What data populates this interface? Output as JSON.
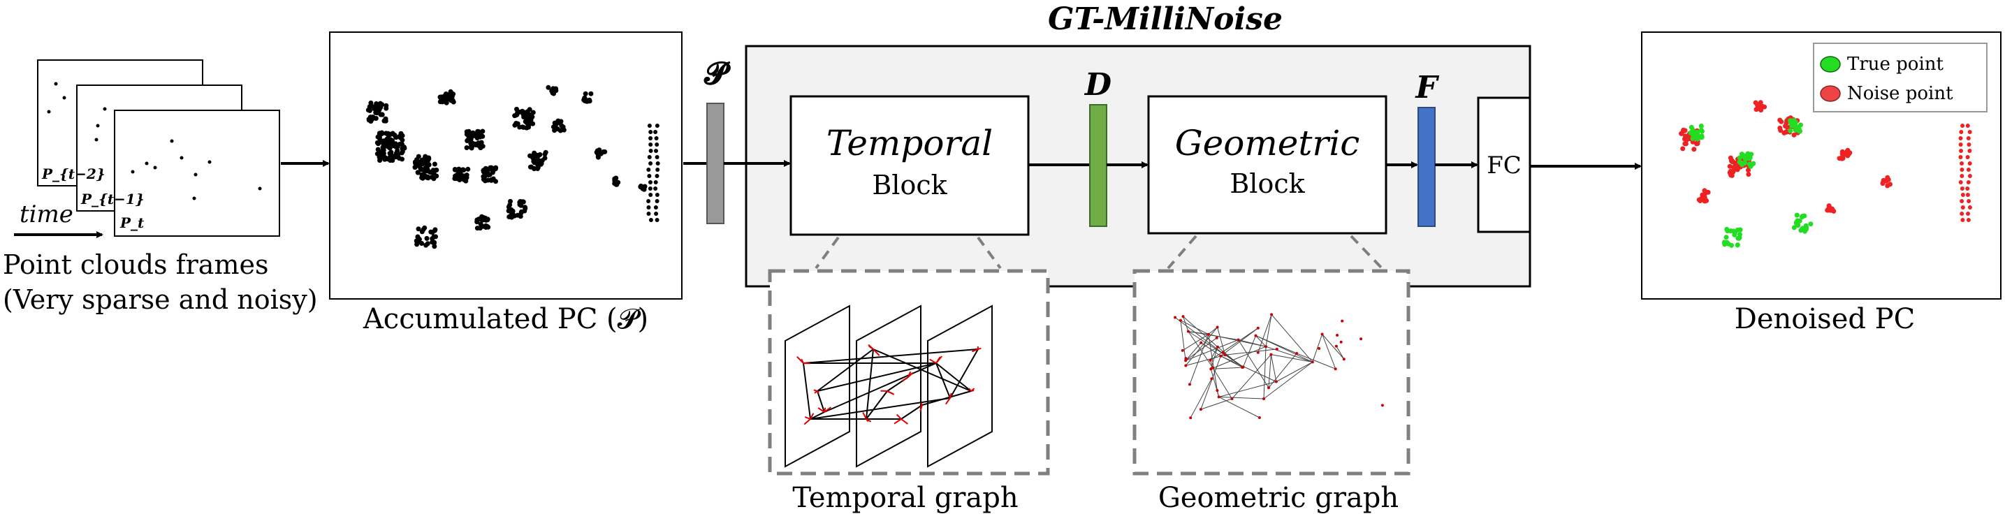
{
  "title": "GT-MilliNoise",
  "input": {
    "time_label": "time",
    "frame_labels": [
      "P_{t−2}",
      "P_{t−1}",
      "P_t"
    ],
    "caption_line1": "Point clouds frames",
    "caption_line2": "(Very sparse and noisy)"
  },
  "accumulated": {
    "caption": "Accumulated PC (𝓟)"
  },
  "symbols": {
    "p": "𝓟",
    "d": "D",
    "f": "F"
  },
  "temporal_block": {
    "line1": "Temporal",
    "line2": "Block"
  },
  "geometric_block": {
    "line1": "Geometric",
    "line2": "Block"
  },
  "fc": {
    "label": "FC"
  },
  "temporal_graph": {
    "caption": "Temporal graph"
  },
  "geometric_graph": {
    "caption": "Geometric graph"
  },
  "output": {
    "caption": "Denoised PC",
    "legend": [
      {
        "label": "True point",
        "color": "#22dd22"
      },
      {
        "label": "Noise point",
        "color": "#ee4444"
      }
    ]
  },
  "colors": {
    "bar_p": "#999999",
    "bar_d": "#70ad47",
    "bar_f": "#4472c4",
    "module_bg": "#f2f2f2",
    "dashed": "#7f7f7f"
  }
}
